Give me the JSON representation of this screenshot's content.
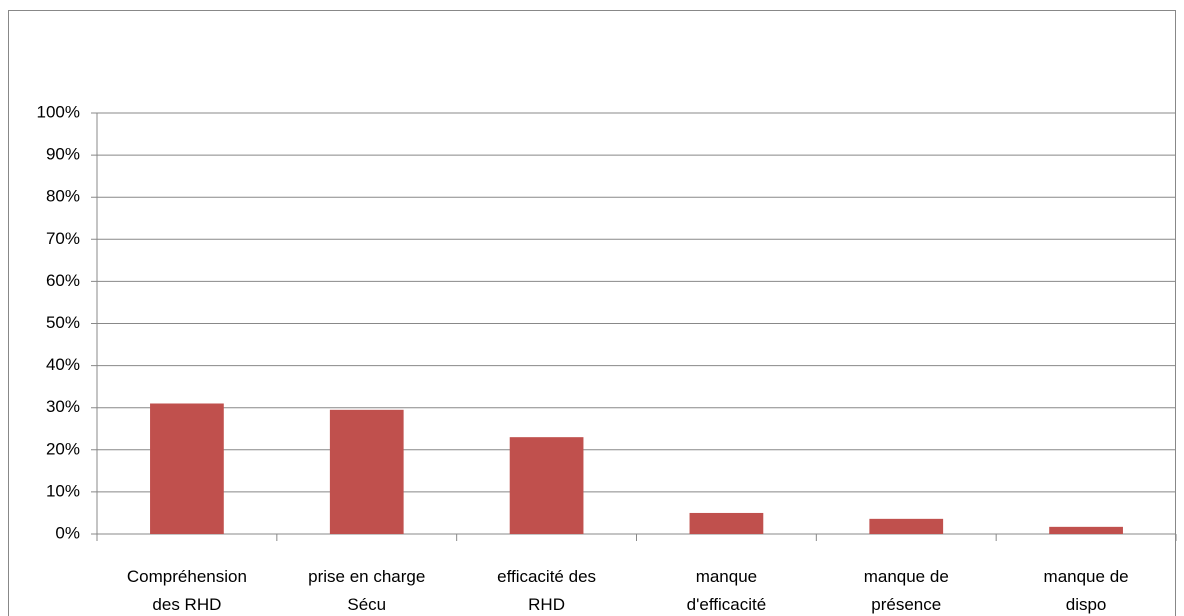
{
  "chart_data": {
    "type": "bar",
    "categories": [
      "Compréhension\ndes RHD",
      "prise en charge\nSécu",
      "efficacité des\nRHD",
      "manque\nd'efficacité",
      "manque de\nprésence",
      "manque de\ndispo"
    ],
    "values": [
      31,
      29.5,
      23,
      5,
      3.6,
      1.7
    ],
    "color": "#c0504d",
    "ylim": [
      0,
      100
    ],
    "yticks": [
      {
        "value": 0,
        "label": "0%"
      },
      {
        "value": 10,
        "label": "10%"
      },
      {
        "value": 20,
        "label": "20%"
      },
      {
        "value": 30,
        "label": "30%"
      },
      {
        "value": 40,
        "label": "40%"
      },
      {
        "value": 50,
        "label": "50%"
      },
      {
        "value": 60,
        "label": "60%"
      },
      {
        "value": 70,
        "label": "70%"
      },
      {
        "value": 80,
        "label": "80%"
      },
      {
        "value": 90,
        "label": "90%"
      },
      {
        "value": 100,
        "label": "100%"
      }
    ],
    "grid": true
  }
}
